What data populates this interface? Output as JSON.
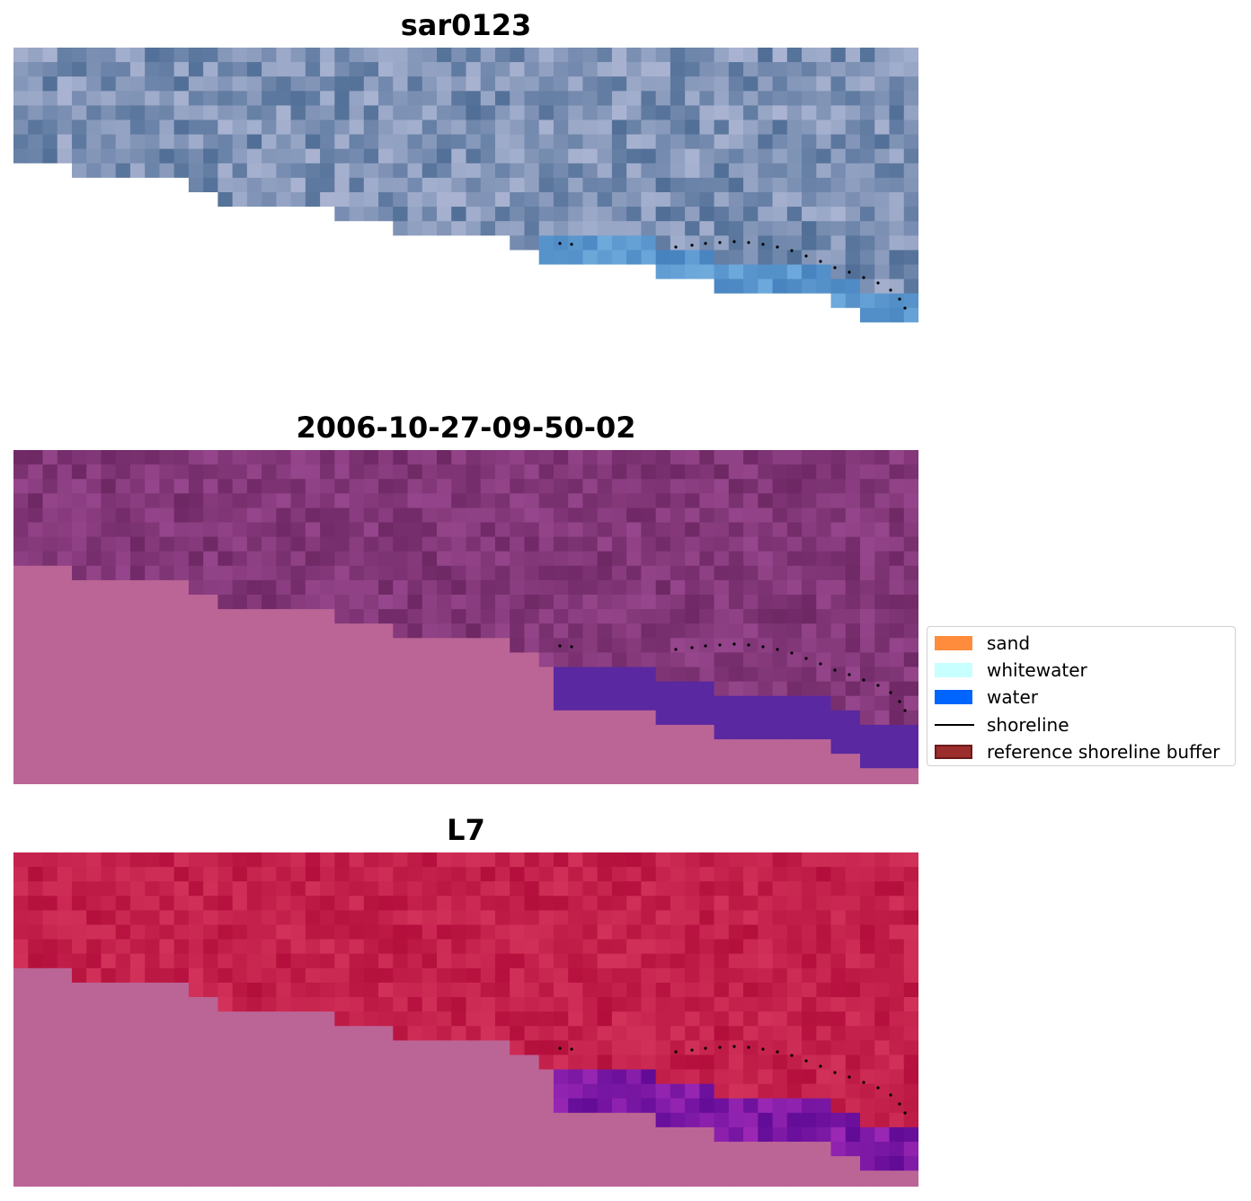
{
  "panels": [
    {
      "title": "sar0123",
      "style": "rgb"
    },
    {
      "title": "2006-10-27-09-50-02",
      "style": "classified"
    },
    {
      "title": "L7",
      "style": "index"
    }
  ],
  "legend": {
    "items": [
      {
        "label": "sand",
        "color": "#ff8c3c",
        "kind": "patch"
      },
      {
        "label": "whitewater",
        "color": "#c8ffff",
        "kind": "patch"
      },
      {
        "label": "water",
        "color": "#0064ff",
        "kind": "patch"
      },
      {
        "label": "shoreline",
        "color": "#000000",
        "kind": "line"
      },
      {
        "label": "reference shoreline buffer",
        "color": "#9b2d2d",
        "kind": "patch"
      }
    ]
  },
  "colors": {
    "land_pink": "#bb6596",
    "classified_sea": "#7a2e6c",
    "water_purple": "#5a28a0",
    "index_red": "#c01a4a",
    "rgb_sea": "#5a7aa0"
  }
}
